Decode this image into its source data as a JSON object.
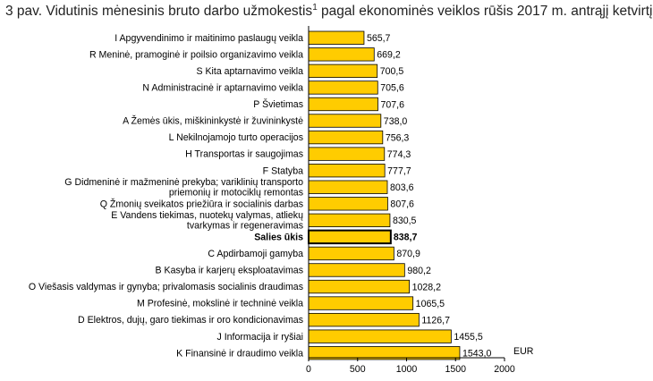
{
  "title": {
    "text": "3 pav. Vidutinis mėnesinis bruto darbo užmokestis",
    "superscript": "1",
    "suffix": " pagal ekonominės veiklos rūšis 2017 m. antrąjį ketvirtį"
  },
  "chart_data": {
    "type": "bar",
    "orientation": "horizontal",
    "title": "3 pav. Vidutinis mėnesinis bruto darbo užmokestis¹ pagal ekonominės veiklos rūšis 2017 m. antrąjį ketvirtį",
    "xlabel": "EUR",
    "ylabel": "",
    "xlim": [
      0,
      2000
    ],
    "xticks": [
      0,
      500,
      1000,
      1500,
      2000
    ],
    "grid": false,
    "bar_color": "#FFCC00",
    "bar_border_color": "#000000",
    "highlighted_category": "Salies ūkis",
    "categories": [
      [
        "I Apgyvendinimo ir maitinimo paslaugų veikla"
      ],
      [
        "R Meninė, pramoginė ir poilsio organizavimo veikla"
      ],
      [
        "S Kita aptarnavimo veikla"
      ],
      [
        "N Administracinė ir aptarnavimo veikla"
      ],
      [
        "P Švietimas"
      ],
      [
        "A Žemės ūkis, miškininkystė ir žuvininkystė"
      ],
      [
        "L Nekilnojamojo turto operacijos"
      ],
      [
        "H Transportas ir saugojimas"
      ],
      [
        "F Statyba"
      ],
      [
        "G Didmeninė ir mažmeninė prekyba; variklinių transporto",
        "priemonių ir motociklų remontas"
      ],
      [
        "Q Žmonių sveikatos priežiūra ir socialinis darbas"
      ],
      [
        "E Vandens tiekimas, nuotekų valymas, atliekų",
        "tvarkymas ir regeneravimas"
      ],
      [
        "Salies ūkis"
      ],
      [
        "C Apdirbamoji gamyba"
      ],
      [
        "B Kasyba ir karjerų eksploatavimas"
      ],
      [
        "O Viešasis valdymas ir gynyba; privalomasis socialinis draudimas"
      ],
      [
        "M Profesinė, mokslinė ir techninė veikla"
      ],
      [
        "D Elektros, dujų, garo tiekimas ir oro kondicionavimas"
      ],
      [
        "J Informacija ir ryšiai"
      ],
      [
        "K Finansinė ir draudimo veikla"
      ]
    ],
    "values": [
      565.7,
      669.2,
      700.5,
      705.6,
      707.6,
      738.0,
      756.3,
      774.3,
      777.7,
      803.6,
      807.6,
      830.5,
      838.7,
      870.9,
      980.2,
      1028.2,
      1065.5,
      1126.7,
      1455.5,
      1543.0
    ],
    "value_labels": [
      "565,7",
      "669,2",
      "700,5",
      "705,6",
      "707,6",
      "738,0",
      "756,3",
      "774,3",
      "777,7",
      "803,6",
      "807,6",
      "830,5",
      "838,7",
      "870,9",
      "980,2",
      "1028,2",
      "1065,5",
      "1126,7",
      "1455,5",
      "1543,0"
    ]
  }
}
